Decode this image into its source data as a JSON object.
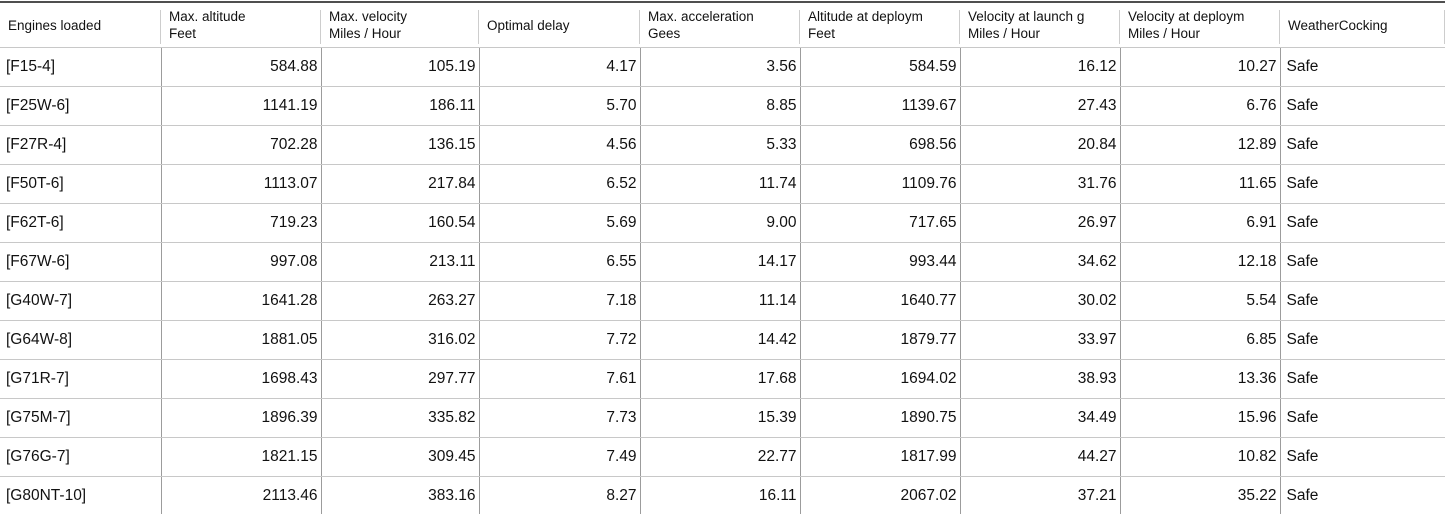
{
  "table": {
    "columns": [
      {
        "label": "Engines loaded",
        "unit": "",
        "align": "left"
      },
      {
        "label": "Max. altitude",
        "unit": "Feet",
        "align": "right"
      },
      {
        "label": "Max. velocity",
        "unit": "Miles / Hour",
        "align": "right"
      },
      {
        "label": "Optimal delay",
        "unit": "",
        "align": "right"
      },
      {
        "label": "Max. acceleration",
        "unit": "Gees",
        "align": "right"
      },
      {
        "label": "Altitude at deploym",
        "unit": "Feet",
        "align": "right"
      },
      {
        "label": "Velocity at launch g",
        "unit": "Miles / Hour",
        "align": "right"
      },
      {
        "label": "Velocity at deploym",
        "unit": "Miles / Hour",
        "align": "right"
      },
      {
        "label": "WeatherCocking",
        "unit": "",
        "align": "left"
      }
    ],
    "rows": [
      [
        "[F15-4]",
        "584.88",
        "105.19",
        "4.17",
        "3.56",
        "584.59",
        "16.12",
        "10.27",
        "Safe"
      ],
      [
        "[F25W-6]",
        "1141.19",
        "186.11",
        "5.70",
        "8.85",
        "1139.67",
        "27.43",
        "6.76",
        "Safe"
      ],
      [
        "[F27R-4]",
        "702.28",
        "136.15",
        "4.56",
        "5.33",
        "698.56",
        "20.84",
        "12.89",
        "Safe"
      ],
      [
        "[F50T-6]",
        "1113.07",
        "217.84",
        "6.52",
        "11.74",
        "1109.76",
        "31.76",
        "11.65",
        "Safe"
      ],
      [
        "[F62T-6]",
        "719.23",
        "160.54",
        "5.69",
        "9.00",
        "717.65",
        "26.97",
        "6.91",
        "Safe"
      ],
      [
        "[F67W-6]",
        "997.08",
        "213.11",
        "6.55",
        "14.17",
        "993.44",
        "34.62",
        "12.18",
        "Safe"
      ],
      [
        "[G40W-7]",
        "1641.28",
        "263.27",
        "7.18",
        "11.14",
        "1640.77",
        "30.02",
        "5.54",
        "Safe"
      ],
      [
        "[G64W-8]",
        "1881.05",
        "316.02",
        "7.72",
        "14.42",
        "1879.77",
        "33.97",
        "6.85",
        "Safe"
      ],
      [
        "[G71R-7]",
        "1698.43",
        "297.77",
        "7.61",
        "17.68",
        "1694.02",
        "38.93",
        "13.36",
        "Safe"
      ],
      [
        "[G75M-7]",
        "1896.39",
        "335.82",
        "7.73",
        "15.39",
        "1890.75",
        "34.49",
        "15.96",
        "Safe"
      ],
      [
        "[G76G-7]",
        "1821.15",
        "309.45",
        "7.49",
        "22.77",
        "1817.99",
        "44.27",
        "10.82",
        "Safe"
      ],
      [
        "[G80NT-10]",
        "2113.46",
        "383.16",
        "8.27",
        "16.11",
        "2067.02",
        "37.21",
        "35.22",
        "Safe"
      ]
    ]
  },
  "colors": {
    "outer_border": "#4f4f4f",
    "column_divider": "#9c9c9c",
    "row_divider": "#c8c8c8",
    "header_divider": "#cdcdcd",
    "background": "#ffffff",
    "text": "#111111"
  }
}
